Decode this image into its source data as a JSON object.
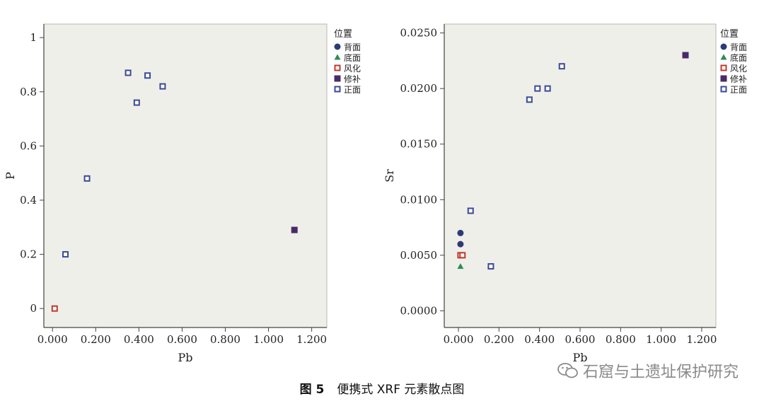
{
  "chart_data": [
    {
      "type": "scatter",
      "xlabel": "Pb",
      "ylabel": "P",
      "xlim": [
        -0.04,
        1.27
      ],
      "ylim": [
        -0.07,
        1.05
      ],
      "xticks": [
        "0.000",
        "0.200",
        "0.400",
        "0.600",
        "0.800",
        "1.000",
        "1.200"
      ],
      "xtick_values": [
        0,
        0.2,
        0.4,
        0.6,
        0.8,
        1.0,
        1.2
      ],
      "yticks": [
        "0",
        "0.2",
        "0.4",
        "0.6",
        "0.8",
        "1"
      ],
      "ytick_values": [
        0,
        0.2,
        0.4,
        0.6,
        0.8,
        1.0
      ],
      "grid": false,
      "legend_position": "right",
      "series": [
        {
          "name": "正面",
          "x": [
            0.06,
            0.16,
            0.35,
            0.39,
            0.44,
            0.51
          ],
          "y": [
            0.2,
            0.48,
            0.87,
            0.76,
            0.86,
            0.82
          ]
        },
        {
          "name": "修补",
          "x": [
            1.12
          ],
          "y": [
            0.29
          ]
        },
        {
          "name": "风化",
          "x": [
            0.01
          ],
          "y": [
            0.0
          ]
        }
      ]
    },
    {
      "type": "scatter",
      "xlabel": "Pb",
      "ylabel": "Sr",
      "xlim": [
        -0.07,
        1.27
      ],
      "ylim": [
        -0.0015,
        0.0258
      ],
      "xticks": [
        "0.000",
        "0.200",
        "0.400",
        "0.600",
        "0.800",
        "1.000",
        "1.200"
      ],
      "xtick_values": [
        0,
        0.2,
        0.4,
        0.6,
        0.8,
        1.0,
        1.2
      ],
      "yticks": [
        "0.0000",
        "0.0050",
        "0.0100",
        "0.0150",
        "0.0200",
        "0.0250"
      ],
      "ytick_values": [
        0,
        0.005,
        0.01,
        0.015,
        0.02,
        0.025
      ],
      "grid": false,
      "legend_position": "right",
      "series": [
        {
          "name": "背面",
          "x": [
            0.01,
            0.01
          ],
          "y": [
            0.007,
            0.006
          ]
        },
        {
          "name": "底面",
          "x": [
            0.01
          ],
          "y": [
            0.004
          ]
        },
        {
          "name": "风化",
          "x": [
            0.01,
            0.02
          ],
          "y": [
            0.005,
            0.005
          ]
        },
        {
          "name": "修补",
          "x": [
            1.12
          ],
          "y": [
            0.023
          ]
        },
        {
          "name": "正面",
          "x": [
            0.06,
            0.16,
            0.35,
            0.39,
            0.44,
            0.51
          ],
          "y": [
            0.009,
            0.004,
            0.019,
            0.02,
            0.02,
            0.022
          ]
        }
      ]
    }
  ],
  "legend": {
    "title": "位置",
    "items": [
      {
        "label": "背面",
        "marker": "circle",
        "color": "#2b3a78"
      },
      {
        "label": "底面",
        "marker": "triangle",
        "color": "#2e8b57"
      },
      {
        "label": "风化",
        "marker": "square-open",
        "color": "#c0392b"
      },
      {
        "label": "修补",
        "marker": "square-filled",
        "color": "#4a2a6a"
      },
      {
        "label": "正面",
        "marker": "square-open",
        "color": "#3a4a9a"
      }
    ]
  },
  "colors": {
    "plot_background": "#efefe9",
    "axis": "#444444"
  },
  "caption": {
    "number": "图 5",
    "text": "便携式 XRF 元素散点图"
  },
  "watermark": {
    "text": "石窟与土遗址保护研究",
    "icon": "wechat-icon"
  }
}
